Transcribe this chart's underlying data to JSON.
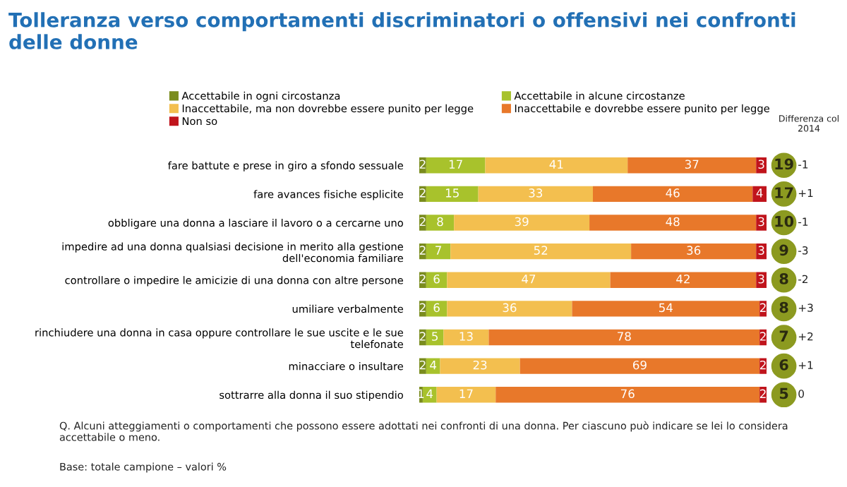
{
  "chart_data": {
    "type": "bar",
    "orientation": "horizontal",
    "stacked": true,
    "tick_labels": "y",
    "data_labels": true,
    "legend": "top",
    "grid": false,
    "title": "Tolleranza verso comportamenti discriminatori o offensivi nei confronti delle donne",
    "categories": [
      "fare battute e prese in giro a sfondo sessuale",
      "fare avances fisiche esplicite",
      "obbligare una donna a lasciare il lavoro o a cercarne uno",
      "impedire ad una donna qualsiasi decisione in merito alla gestione dell'economia familiare",
      "controllare o impedire le amicizie di una donna con altre persone",
      "umiliare verbalmente",
      "rinchiudere una donna in casa oppure controllare le sue uscite e le sue telefonate",
      "minacciare o insultare",
      "sottrarre alla donna il suo stipendio"
    ],
    "series": [
      {
        "name": "Accettabile in ogni circostanza",
        "color": "#7a8c1e",
        "values": [
          2,
          2,
          2,
          2,
          2,
          2,
          2,
          2,
          1
        ]
      },
      {
        "name": "Accettabile in alcune circostanze",
        "color": "#a8c22c",
        "values": [
          17,
          15,
          8,
          7,
          6,
          6,
          5,
          4,
          4
        ]
      },
      {
        "name": "Inaccettabile, ma non dovrebbe essere punito per legge",
        "color": "#f3bf4f",
        "values": [
          41,
          33,
          39,
          52,
          47,
          36,
          13,
          23,
          17
        ]
      },
      {
        "name": "Inaccettabile e dovrebbe essere punito per legge",
        "color": "#e8782a",
        "values": [
          37,
          46,
          48,
          36,
          42,
          54,
          78,
          69,
          76
        ]
      },
      {
        "name": "Non so",
        "color": "#c0141c",
        "values": [
          3,
          4,
          3,
          3,
          3,
          2,
          2,
          2,
          2
        ]
      }
    ],
    "annotations": [
      "19",
      "-1",
      "17",
      "+1",
      "10",
      "-1",
      "9",
      "-3",
      "8",
      "-2",
      "8",
      "+3",
      "7",
      "+2",
      "6",
      "+1",
      "5",
      "0",
      "Differenza col 2014",
      "Q. Alcuni atteggiamenti o comportamenti che possono essere adottati nei confronti di una donna. Per ciascuno può indicare se lei lo considera accettabile o meno.",
      "Base: totale campione – valori %"
    ]
  }
}
